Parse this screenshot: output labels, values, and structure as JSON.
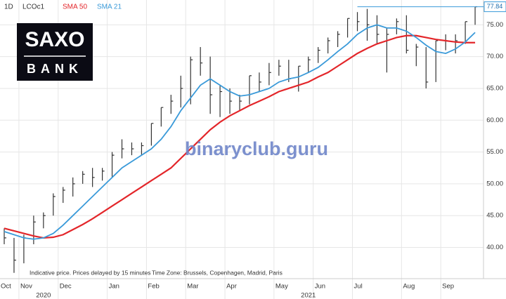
{
  "chart_data": {
    "type": "ohlc",
    "interval": "1D",
    "categories": [
      "Oct",
      null,
      "Nov",
      null,
      null,
      null,
      "Dec",
      null,
      null,
      null,
      null,
      "Jan",
      null,
      null,
      null,
      "Feb",
      null,
      null,
      null,
      "Mar",
      null,
      null,
      null,
      "Apr",
      null,
      null,
      null,
      null,
      "May",
      null,
      null,
      null,
      "Jun",
      null,
      null,
      null,
      "Jul",
      null,
      null,
      null,
      null,
      "Aug",
      null,
      null,
      null,
      "Sep",
      null,
      null,
      null
    ],
    "year_labels": [
      "2020",
      "2021"
    ],
    "series": [
      {
        "name": "LCOc1",
        "color": "#333333",
        "high": [
          43,
          41.5,
          42,
          45,
          45.5,
          48.5,
          49.5,
          51,
          52,
          52.5,
          52.5,
          55,
          57,
          56.5,
          56.5,
          59.5,
          62,
          64,
          67,
          70,
          71.5,
          70,
          65.5,
          65,
          64,
          67,
          67.5,
          69,
          69.5,
          69.5,
          68.5,
          70,
          71.5,
          73,
          74,
          76,
          77,
          77.5,
          76.5,
          74.5,
          76,
          76.5,
          72,
          71.5,
          72.5,
          73.5,
          73.5,
          75.5,
          77.8
        ],
        "low": [
          40.5,
          36,
          37.5,
          40.5,
          43,
          45,
          47,
          48,
          50,
          49.5,
          50.5,
          51,
          54,
          54.5,
          54.5,
          56,
          59,
          61,
          62,
          62.5,
          67,
          61,
          60.5,
          61,
          61.5,
          62.5,
          64.5,
          65.5,
          67,
          66,
          64.5,
          67.5,
          69,
          70.5,
          71.5,
          73,
          74,
          72.5,
          72,
          67.5,
          73.5,
          70.5,
          68.5,
          65,
          66,
          71,
          70.5,
          72,
          75
        ],
        "close": [
          41.5,
          38,
          41.5,
          44,
          45,
          48,
          49,
          50,
          51.5,
          51,
          52,
          54.5,
          55.5,
          55.5,
          56,
          59.5,
          62,
          63,
          65,
          69.5,
          69,
          64,
          64.5,
          63,
          63,
          67,
          66,
          67.5,
          68.5,
          66.5,
          68.5,
          69.5,
          71,
          72.5,
          73.5,
          76,
          75.5,
          75,
          73.5,
          73.5,
          75.5,
          71,
          71.5,
          66,
          72.5,
          72.5,
          72.5,
          75.5,
          77.84
        ]
      },
      {
        "name": "SMA 50",
        "color": "#e3262a",
        "values": [
          43,
          42.6,
          42.2,
          41.8,
          41.5,
          41.6,
          42,
          42.8,
          43.6,
          44.5,
          45.5,
          46.5,
          47.5,
          48.5,
          49.5,
          50.5,
          51.5,
          52.5,
          54,
          55.5,
          57,
          58.5,
          59.7,
          60.7,
          61.5,
          62.3,
          63,
          63.7,
          64.5,
          65,
          65.5,
          66,
          66.8,
          67.5,
          68.5,
          69.5,
          70.5,
          71.3,
          72,
          72.5,
          73,
          73.3,
          73.3,
          73,
          72.7,
          72.5,
          72.3,
          72.2,
          72.2
        ]
      },
      {
        "name": "SMA 21",
        "color": "#3a9ad9",
        "values": [
          42.5,
          42,
          41.5,
          41.3,
          41.5,
          42.2,
          43.5,
          45,
          46.5,
          48,
          49.5,
          51,
          52.5,
          53.5,
          54.5,
          55.5,
          57,
          59,
          61.5,
          63.5,
          65.5,
          66.5,
          65.5,
          64.5,
          63.8,
          64,
          64.5,
          65,
          66,
          66.5,
          66.8,
          67.5,
          68.3,
          69.5,
          70.8,
          72,
          73.5,
          74.5,
          75,
          74.5,
          74.5,
          74,
          73,
          71.8,
          70.8,
          70.5,
          71.2,
          72.3,
          73.8
        ]
      }
    ],
    "last_value": 77.84,
    "ylim": [
      35.2,
      78.9
    ],
    "yticks": [
      {
        "value": 40,
        "label": "40.00"
      },
      {
        "value": 45,
        "label": "45.00"
      },
      {
        "value": 50,
        "label": "50.00"
      },
      {
        "value": 55,
        "label": "55.00"
      },
      {
        "value": 60,
        "label": "60.00"
      },
      {
        "value": 65,
        "label": "65.00"
      },
      {
        "value": 70,
        "label": "70.00"
      },
      {
        "value": 75,
        "label": "75.00"
      }
    ],
    "grid": true,
    "notes": [
      "Indicative price. Prices delayed by 15 minutes",
      "Time Zone: Brussels, Copenhagen, Madrid, Paris"
    ]
  },
  "logo": {
    "top": "SAXO",
    "bottom": "BANK"
  },
  "watermark": "binaryclub.guru"
}
